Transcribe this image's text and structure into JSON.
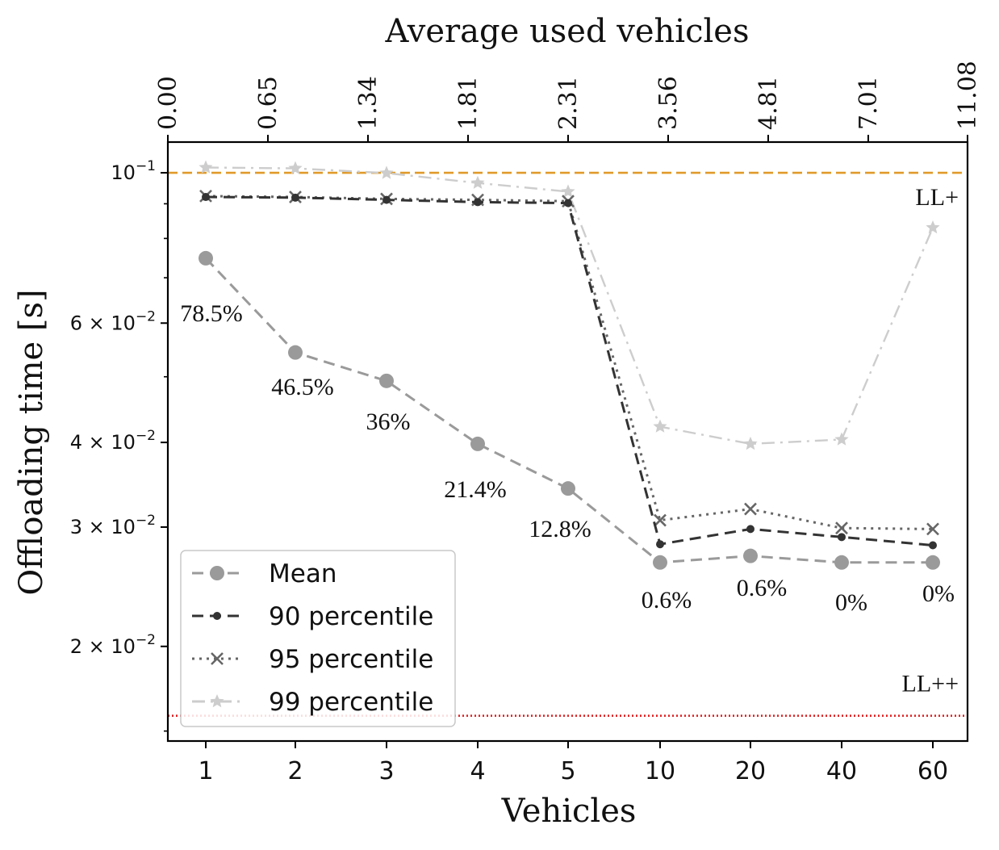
{
  "chart_data": {
    "type": "line",
    "title": "Average used vehicles",
    "xlabel": "Vehicles",
    "ylabel": "Offloading time [s]",
    "yscale": "log",
    "ylim": [
      0.0145,
      0.111
    ],
    "categories": [
      "1",
      "2",
      "3",
      "4",
      "5",
      "10",
      "20",
      "40",
      "60"
    ],
    "top_axis": {
      "label": "Average used vehicles",
      "ticks": [
        "0.00",
        "0.65",
        "1.34",
        "1.81",
        "2.31",
        "3.56",
        "4.81",
        "7.01",
        "11.08"
      ]
    },
    "y_ticks": [
      {
        "value": 0.1,
        "base": "10",
        "exp": "−1",
        "mant": ""
      },
      {
        "value": 0.06,
        "base": "10",
        "exp": "−2",
        "mant": "6 × "
      },
      {
        "value": 0.04,
        "base": "10",
        "exp": "−2",
        "mant": "4 × "
      },
      {
        "value": 0.03,
        "base": "10",
        "exp": "−2",
        "mant": "3 × "
      },
      {
        "value": 0.02,
        "base": "10",
        "exp": "−2",
        "mant": "2 × "
      }
    ],
    "series": [
      {
        "name": "Mean",
        "color": "#9a9a9a",
        "marker": "circle",
        "dash": "dashed",
        "values": [
          0.0748,
          0.0543,
          0.0493,
          0.0398,
          0.0342,
          0.0266,
          0.0272,
          0.0266,
          0.0266
        ]
      },
      {
        "name": "90 percentile",
        "color": "#333333",
        "marker": "dot",
        "dash": "dashed",
        "values": [
          0.0921,
          0.0919,
          0.0912,
          0.0905,
          0.0902,
          0.0283,
          0.0298,
          0.029,
          0.0282
        ]
      },
      {
        "name": "95 percentile",
        "color": "#666666",
        "marker": "x",
        "dash": "dotted",
        "values": [
          0.0924,
          0.0921,
          0.0915,
          0.0912,
          0.0908,
          0.0307,
          0.0319,
          0.0299,
          0.0298
        ]
      },
      {
        "name": "99 percentile",
        "color": "#cdcdcd",
        "marker": "star",
        "dash": "dashdot",
        "values": [
          0.1018,
          0.1015,
          0.0999,
          0.0966,
          0.0938,
          0.0422,
          0.0398,
          0.0404,
          0.083
        ]
      }
    ],
    "reference_lines": [
      {
        "name": "LL+",
        "value": 0.1,
        "color": "#e09a2a",
        "dash": "dashed"
      },
      {
        "name": "LL++",
        "value": 0.0158,
        "color": "#e02020",
        "dash": "dotted"
      }
    ],
    "annotations": [
      "78.5%",
      "46.5%",
      "36%",
      "21.4%",
      "12.8%",
      "0.6%",
      "0.6%",
      "0%",
      "0%"
    ],
    "legend_position": "lower-left",
    "grid": false
  }
}
